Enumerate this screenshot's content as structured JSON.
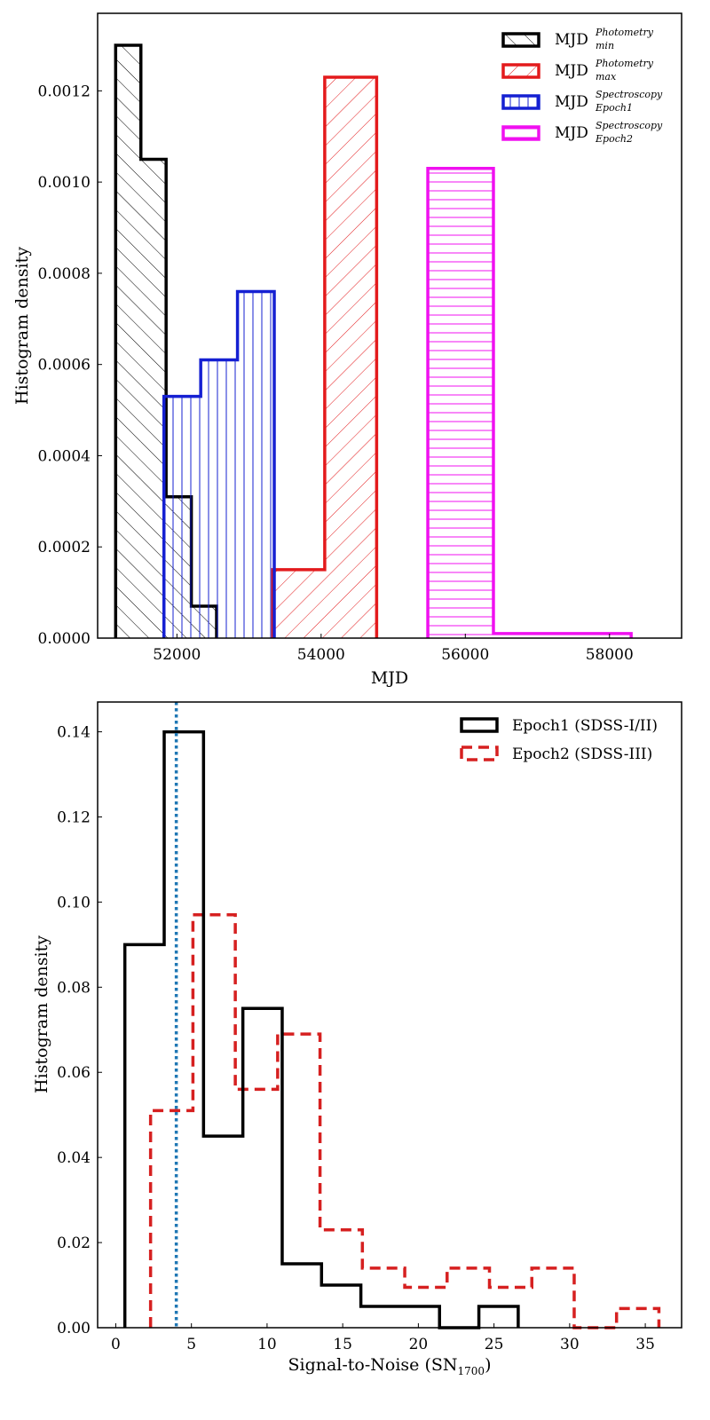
{
  "chart_data": [
    {
      "type": "histogram",
      "xlabel": "MJD",
      "ylabel": "Histogram density",
      "xlim": [
        50900,
        59000
      ],
      "ylim": [
        0,
        0.00137
      ],
      "xticks": [
        52000,
        54000,
        56000,
        58000
      ],
      "xtick_labels": [
        "52000",
        "54000",
        "56000",
        "58000"
      ],
      "yticks": [
        0,
        0.0002,
        0.0004,
        0.0006,
        0.0008,
        0.001,
        0.0012
      ],
      "ytick_labels": [
        "0.0000",
        "0.0002",
        "0.0004",
        "0.0006",
        "0.0008",
        "0.0010",
        "0.0012"
      ],
      "legend_position": "top-right",
      "series": [
        {
          "name": "MJD_min^Photometry",
          "label_main": "MJD",
          "label_sup": "Photometry",
          "label_sub": "min",
          "color": "#000000",
          "hatch": "diagonal-up",
          "bin_edges": [
            51150,
            51500,
            51850,
            52200,
            52550
          ],
          "values": [
            0.0013,
            0.00105,
            0.00031,
            7e-05
          ]
        },
        {
          "name": "MJD_max^Photometry",
          "label_main": "MJD",
          "label_sup": "Photometry",
          "label_sub": "max",
          "color": "#e31a1c",
          "hatch": "diagonal-down",
          "bin_edges": [
            53330,
            54050,
            54770
          ],
          "values": [
            0.00015,
            0.00123
          ]
        },
        {
          "name": "MJD_Epoch1^Spectroscopy",
          "label_main": "MJD",
          "label_sup": "Spectroscopy",
          "label_sub": "Epoch1",
          "color": "#1520d2",
          "hatch": "vertical",
          "bin_edges": [
            51820,
            52330,
            52840,
            53350
          ],
          "values": [
            0.00053,
            0.00061,
            0.00076
          ]
        },
        {
          "name": "MJD_Epoch2^Spectroscopy",
          "label_main": "MJD",
          "label_sup": "Spectroscopy",
          "label_sub": "Epoch2",
          "color": "#f010f0",
          "hatch": "horizontal",
          "bin_edges": [
            55480,
            56390,
            57300,
            58300
          ],
          "values": [
            0.00103,
            1e-05,
            1e-05
          ]
        }
      ]
    },
    {
      "type": "histogram",
      "xlabel": "Signal-to-Noise (SN",
      "xlabel_sub": "1700",
      "xlabel_end": ")",
      "ylabel": "Histogram density",
      "xlim": [
        -1.2,
        37.4
      ],
      "ylim": [
        0,
        0.147
      ],
      "xticks": [
        0,
        5,
        10,
        15,
        20,
        25,
        30,
        35
      ],
      "xtick_labels": [
        "0",
        "5",
        "10",
        "15",
        "20",
        "25",
        "30",
        "35"
      ],
      "yticks": [
        0,
        0.02,
        0.04,
        0.06,
        0.08,
        0.1,
        0.12,
        0.14
      ],
      "ytick_labels": [
        "0.00",
        "0.02",
        "0.04",
        "0.06",
        "0.08",
        "0.10",
        "0.12",
        "0.14"
      ],
      "legend_position": "top-right",
      "vline": {
        "x": 4.0,
        "color": "#1f77b4",
        "style": "dotted"
      },
      "series": [
        {
          "name": "Epoch1 (SDSS-I/II)",
          "color": "#000000",
          "linestyle": "solid",
          "bin_edges": [
            0.6,
            3.2,
            5.8,
            8.4,
            11.0,
            13.6,
            16.2,
            18.8,
            21.4,
            24.0,
            26.6
          ],
          "values": [
            0.09,
            0.14,
            0.045,
            0.075,
            0.015,
            0.01,
            0.005,
            0.005,
            0.0,
            0.005
          ]
        },
        {
          "name": "Epoch2 (SDSS-III)",
          "color": "#d62020",
          "linestyle": "dashed",
          "bin_edges": [
            2.3,
            5.1,
            7.9,
            10.7,
            13.5,
            16.3,
            19.1,
            21.9,
            24.7,
            27.5,
            30.3,
            33.1,
            35.9
          ],
          "values": [
            0.051,
            0.097,
            0.056,
            0.069,
            0.023,
            0.014,
            0.0095,
            0.014,
            0.0095,
            0.014,
            0.0,
            0.0045
          ]
        }
      ]
    }
  ]
}
